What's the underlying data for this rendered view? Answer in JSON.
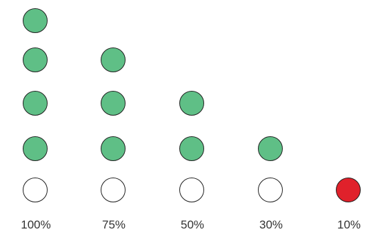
{
  "colors": {
    "filled": "#5fbf86",
    "empty": "#ffffff",
    "alert": "#e0212b",
    "outline": "#1f1f1f"
  },
  "columns": [
    {
      "label": "100%",
      "filled_count": 4,
      "base": "empty"
    },
    {
      "label": "75%",
      "filled_count": 3,
      "base": "empty"
    },
    {
      "label": "50%",
      "filled_count": 2,
      "base": "empty"
    },
    {
      "label": "30%",
      "filled_count": 1,
      "base": "empty"
    },
    {
      "label": "10%",
      "filled_count": 0,
      "base": "alert"
    }
  ]
}
